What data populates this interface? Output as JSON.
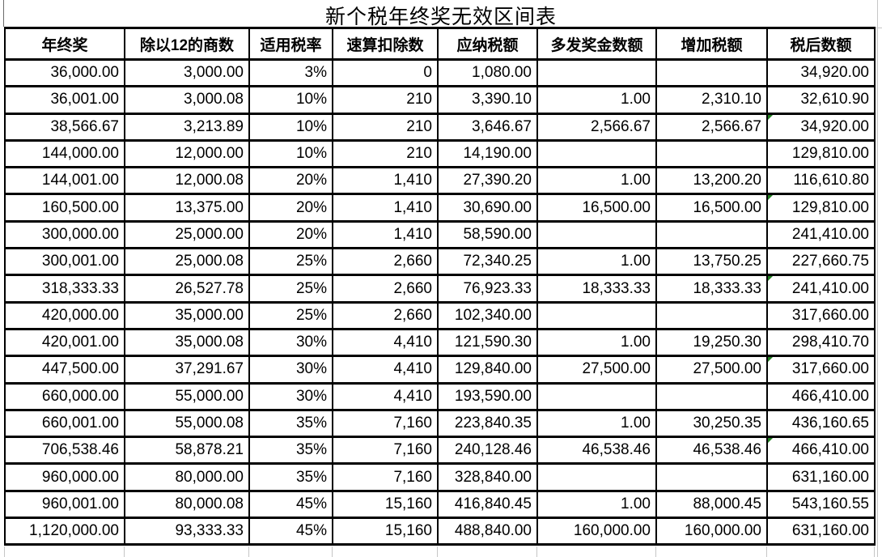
{
  "title": "新个税年终奖无效区间表",
  "colors": {
    "accent_red": "#ff0000",
    "marker_green": "#1f7e1f",
    "border": "#000000"
  },
  "table": {
    "columns": [
      "年终奖",
      "除以12的商数",
      "适用税率",
      "速算扣除数",
      "应纳税额",
      "多发奖金数额",
      "增加税额",
      "税后数额"
    ],
    "red_header_index": 6,
    "red_value_column_index": 6,
    "rows": [
      {
        "cells": [
          "36,000.00",
          "3,000.00",
          "3%",
          "0",
          "1,080.00",
          "",
          "",
          "34,920.00"
        ],
        "marker_last_cell": false
      },
      {
        "cells": [
          "36,001.00",
          "3,000.08",
          "10%",
          "210",
          "3,390.10",
          "1.00",
          "2,310.10",
          "32,610.90"
        ],
        "marker_last_cell": false
      },
      {
        "cells": [
          "38,566.67",
          "3,213.89",
          "10%",
          "210",
          "3,646.67",
          "2,566.67",
          "2,566.67",
          "34,920.00"
        ],
        "marker_last_cell": true
      },
      {
        "cells": [
          "144,000.00",
          "12,000.00",
          "10%",
          "210",
          "14,190.00",
          "",
          "",
          "129,810.00"
        ],
        "marker_last_cell": false
      },
      {
        "cells": [
          "144,001.00",
          "12,000.08",
          "20%",
          "1,410",
          "27,390.20",
          "1.00",
          "13,200.20",
          "116,610.80"
        ],
        "marker_last_cell": false
      },
      {
        "cells": [
          "160,500.00",
          "13,375.00",
          "20%",
          "1,410",
          "30,690.00",
          "16,500.00",
          "16,500.00",
          "129,810.00"
        ],
        "marker_last_cell": true
      },
      {
        "cells": [
          "300,000.00",
          "25,000.00",
          "20%",
          "1,410",
          "58,590.00",
          "",
          "",
          "241,410.00"
        ],
        "marker_last_cell": false
      },
      {
        "cells": [
          "300,001.00",
          "25,000.08",
          "25%",
          "2,660",
          "72,340.25",
          "1.00",
          "13,750.25",
          "227,660.75"
        ],
        "marker_last_cell": false
      },
      {
        "cells": [
          "318,333.33",
          "26,527.78",
          "25%",
          "2,660",
          "76,923.33",
          "18,333.33",
          "18,333.33",
          "241,410.00"
        ],
        "marker_last_cell": true
      },
      {
        "cells": [
          "420,000.00",
          "35,000.00",
          "25%",
          "2,660",
          "102,340.00",
          "",
          "",
          "317,660.00"
        ],
        "marker_last_cell": false
      },
      {
        "cells": [
          "420,001.00",
          "35,000.08",
          "30%",
          "4,410",
          "121,590.30",
          "1.00",
          "19,250.30",
          "298,410.70"
        ],
        "marker_last_cell": false
      },
      {
        "cells": [
          "447,500.00",
          "37,291.67",
          "30%",
          "4,410",
          "129,840.00",
          "27,500.00",
          "27,500.00",
          "317,660.00"
        ],
        "marker_last_cell": true
      },
      {
        "cells": [
          "660,000.00",
          "55,000.00",
          "30%",
          "4,410",
          "193,590.00",
          "",
          "",
          "466,410.00"
        ],
        "marker_last_cell": false
      },
      {
        "cells": [
          "660,001.00",
          "55,000.08",
          "35%",
          "7,160",
          "223,840.35",
          "1.00",
          "30,250.35",
          "436,160.65"
        ],
        "marker_last_cell": false
      },
      {
        "cells": [
          "706,538.46",
          "58,878.21",
          "35%",
          "7,160",
          "240,128.46",
          "46,538.46",
          "46,538.46",
          "466,410.00"
        ],
        "marker_last_cell": true
      },
      {
        "cells": [
          "960,000.00",
          "80,000.00",
          "35%",
          "7,160",
          "328,840.00",
          "",
          "",
          "631,160.00"
        ],
        "marker_last_cell": false
      },
      {
        "cells": [
          "960,001.00",
          "80,000.08",
          "45%",
          "15,160",
          "416,840.45",
          "1.00",
          "88,000.45",
          "543,160.55"
        ],
        "marker_last_cell": false
      },
      {
        "cells": [
          "1,120,000.00",
          "93,333.33",
          "45%",
          "15,160",
          "488,840.00",
          "160,000.00",
          "160,000.00",
          "631,160.00"
        ],
        "marker_last_cell": false
      }
    ]
  }
}
